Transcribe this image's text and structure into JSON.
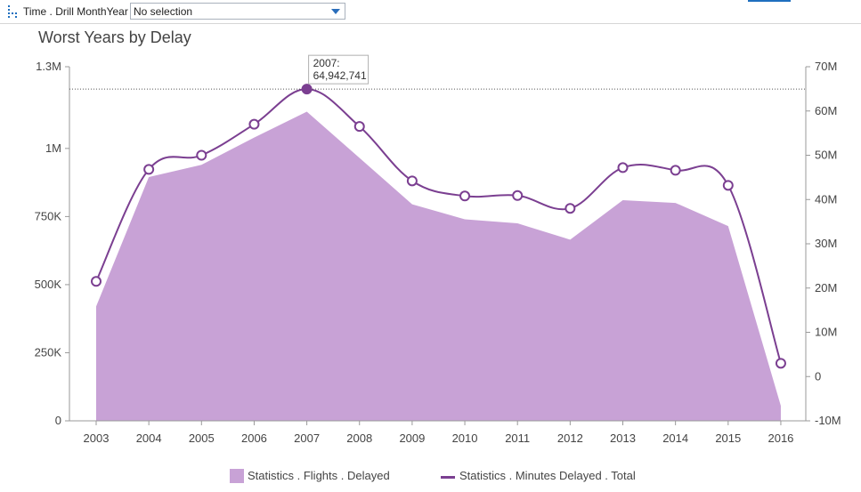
{
  "filter": {
    "label": "Time . Drill MonthYear",
    "value": "No selection",
    "icon": "hierarchy-drill-icon"
  },
  "chart_data": {
    "type": "area",
    "title": "Worst Years by Delay",
    "categories": [
      "2003",
      "2004",
      "2005",
      "2006",
      "2007",
      "2008",
      "2009",
      "2010",
      "2011",
      "2012",
      "2013",
      "2014",
      "2015",
      "2016"
    ],
    "series": [
      {
        "name": "Statistics . Flights . Delayed",
        "type": "area",
        "axis": "left",
        "color": "#c8a2d6",
        "values": [
          420000,
          895000,
          940000,
          1040000,
          1135000,
          965000,
          795000,
          740000,
          725000,
          665000,
          810000,
          800000,
          715000,
          55000
        ]
      },
      {
        "name": "Statistics . Minutes Delayed . Total",
        "type": "line",
        "axis": "right",
        "color": "#7b3f91",
        "values": [
          21500000,
          46800000,
          50000000,
          57000000,
          64942741,
          56500000,
          44200000,
          40800000,
          40900000,
          38000000,
          47200000,
          46600000,
          43200000,
          3000000
        ]
      }
    ],
    "y_left": {
      "ylim": [
        0,
        1300000
      ],
      "ticks": [
        0,
        250000,
        500000,
        750000,
        1000000,
        1300000
      ],
      "tick_labels": [
        "0",
        "250K",
        "500K",
        "750K",
        "1M",
        "1.3M"
      ]
    },
    "y_right": {
      "ylim": [
        -10000000,
        70000000
      ],
      "ticks": [
        -10000000,
        0,
        10000000,
        20000000,
        30000000,
        40000000,
        50000000,
        60000000,
        70000000
      ],
      "tick_labels": [
        "-10M",
        "0",
        "10M",
        "20M",
        "30M",
        "40M",
        "50M",
        "60M",
        "70M"
      ]
    },
    "tooltip": {
      "category": "2007",
      "text_line1": "2007:",
      "text_line2": "64,942,741",
      "series": 1
    },
    "legend": [
      "Statistics . Flights . Delayed",
      "Statistics . Minutes Delayed . Total"
    ],
    "legend_position": "bottom",
    "grid": false
  }
}
